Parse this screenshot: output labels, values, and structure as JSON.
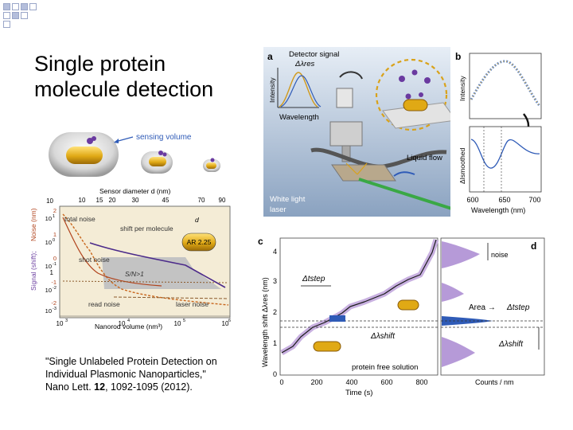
{
  "slide": {
    "title_line1": "Single protein",
    "title_line2": "molecule detection",
    "citation_line1": "\"Single Unlabeled Protein Detection on",
    "citation_line2": "Individual   Plasmonic   Nanoparticles,\"",
    "citation_line3_pre": "Nano Lett. ",
    "citation_volume": "12",
    "citation_line3_post": ", 1092-1095 (2012)."
  },
  "nanorods": {
    "sensing_volume_label": "sensing volume"
  },
  "noise_plot": {
    "top_axis_label": "Sensor diameter d (nm)",
    "top_ticks": [
      "10",
      "15",
      "20",
      "30",
      "45",
      "70",
      "90"
    ],
    "left_ticks_shift": [
      "2",
      "1",
      "0",
      "-1",
      "-2"
    ],
    "left_ticks_noise": [
      "10",
      "10",
      "10",
      "10",
      "10"
    ],
    "noise_exponents": [
      "1",
      "0",
      "-1",
      "-2",
      "-3"
    ],
    "right_ticks": [
      "10",
      "1"
    ],
    "ylabel_signal": "Signal (shift);",
    "ylabel_noise": "Noise (nm)",
    "total_noise_label": "total noise",
    "shift_label": "shift per molecule",
    "shot_noise_label": "shot noise",
    "snr_label": "S/N>1",
    "read_noise_label": "read noise",
    "laser_noise_label": "laser noise",
    "ar_label": "AR 2.25",
    "d_label": "d",
    "bottom_ticks": [
      "10",
      "10",
      "10",
      "10"
    ],
    "bottom_exponents": [
      "3",
      "4",
      "5",
      "6"
    ],
    "xlabel": "Nanorod volume (nm³)"
  },
  "panel_a": {
    "letter": "a",
    "detector_signal": "Detector signal",
    "delta_res": "Δλres",
    "intensity": "Intensity",
    "wavelength": "Wavelength",
    "liquid_flow": "Liquid flow",
    "white_light": "White light",
    "laser": "laser"
  },
  "panel_b": {
    "letter": "b",
    "intensity": "Intensity",
    "delta_i": "ΔIsmoothed",
    "x_ticks": [
      "600",
      "650",
      "700"
    ],
    "xlabel": "Wavelength (nm)"
  },
  "panel_c": {
    "letter": "c",
    "y_ticks": [
      "0",
      "1",
      "2",
      "3",
      "4"
    ],
    "x_ticks": [
      "0",
      "200",
      "400",
      "600",
      "800"
    ],
    "ylabel": "Wavelength shift Δλres (nm)",
    "xlabel": "Time (s)",
    "t_step": "Δtstep",
    "l_shift": "Δλshift",
    "protein_free": "protein free solution"
  },
  "panel_d": {
    "letter": "d",
    "noise": "noise",
    "area_label": "Area →",
    "t_step": "Δtstep",
    "l_shift": "Δλshift",
    "xlabel": "Counts / nm"
  },
  "colors": {
    "accent_purple": "#9a7bc4",
    "blue": "#2f5bb7",
    "orange": "#c8651b",
    "gold": "#d9a21a"
  }
}
